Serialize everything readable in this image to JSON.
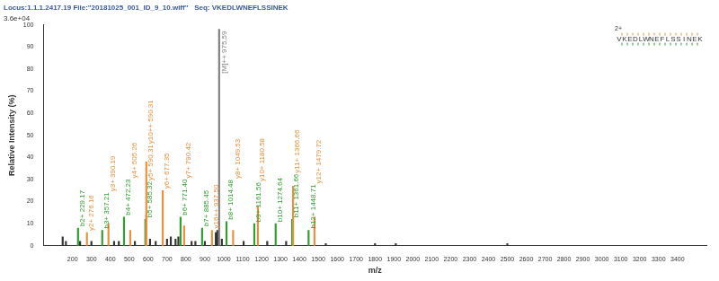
{
  "chart_data": {
    "type": "bar",
    "title": "Locus:1.1.1.2417.19 File:\"20181025_001_ID_9_10.wiff\"   Seq: VKEDLWNEFLSSINEK",
    "y_scale_label": "3.6e+04",
    "x_label": "m/z",
    "y_label": "Relative Intensity (%)",
    "sequence": "VKEDLWNEFLSSINEK",
    "charge_label": "2+",
    "x": [
      148,
      165,
      229.17,
      240,
      276.16,
      300,
      357.21,
      390.19,
      420,
      445,
      472.23,
      505.26,
      530,
      585.32,
      590.31,
      590.31,
      610,
      640,
      677.35,
      700,
      720,
      745,
      760,
      771.4,
      790.42,
      830,
      850,
      885.45,
      900,
      937.5,
      958,
      966,
      975.59,
      990,
      1014.48,
      1049.53,
      1105,
      1161.56,
      1180.58,
      1230,
      1274.64,
      1330,
      1361.66,
      1366.66,
      1448.71,
      1479.72,
      1540,
      1800,
      1910,
      2500
    ],
    "values": [
      4,
      2,
      8,
      2,
      6,
      2,
      7,
      10,
      2,
      2,
      13,
      7,
      2,
      12,
      14,
      38,
      3,
      2,
      25,
      3,
      4,
      3,
      4,
      13,
      9,
      2,
      2,
      8,
      2,
      7,
      6,
      7,
      98,
      3,
      11,
      7,
      2,
      10,
      18,
      2,
      10,
      2,
      12,
      27,
      7,
      13,
      1,
      1,
      1,
      1
    ],
    "colors": [
      "#333333",
      "#333333",
      "#2e9e2e",
      "#333333",
      "#e8903c",
      "#333333",
      "#2e9e2e",
      "#e8903c",
      "#333333",
      "#333333",
      "#2e9e2e",
      "#e8903c",
      "#333333",
      "#2e9e2e",
      "#e8903c",
      "#e8903c",
      "#333333",
      "#333333",
      "#e8903c",
      "#333333",
      "#333333",
      "#333333",
      "#333333",
      "#2e9e2e",
      "#e8903c",
      "#333333",
      "#333333",
      "#2e9e2e",
      "#333333",
      "#e8903c",
      "#333333",
      "#333333",
      "#7f7f7f",
      "#333333",
      "#2e9e2e",
      "#e8903c",
      "#333333",
      "#2e9e2e",
      "#e8903c",
      "#333333",
      "#2e9e2e",
      "#333333",
      "#2e9e2e",
      "#e8903c",
      "#2e9e2e",
      "#e8903c",
      "#333333",
      "#333333",
      "#333333",
      "#333333"
    ],
    "peak_labels": [
      null,
      null,
      "b2+ 229.17",
      null,
      "y2+ 276.16",
      null,
      "b3+ 357.21",
      "y3+ 390.19",
      null,
      null,
      "b4+ 472.23",
      "y4+ 505.26",
      null,
      "b5+ 585.32",
      "y5+ 590.31",
      "y10++ 590.31",
      null,
      null,
      "y6+ 677.35",
      null,
      null,
      null,
      null,
      "b6+ 771.40",
      "y7+ 790.42",
      null,
      null,
      "b7+ 885.45",
      null,
      "y16++ 937.50",
      null,
      null,
      "[M]++ 975.59",
      null,
      "b8+ 1014.48",
      "y8+ 1049.53",
      null,
      "b9+ 1161.56",
      "y10+ 1180.58",
      null,
      "b10+ 1274.64",
      null,
      "b11+ 1361.66",
      "y11+ 1366.66",
      "b12+ 1448.71",
      "y12+ 1479.72",
      null,
      null,
      null,
      null
    ],
    "xlim": [
      100,
      3500
    ],
    "xticks": [
      200,
      300,
      400,
      500,
      600,
      700,
      800,
      900,
      1000,
      1100,
      1200,
      1300,
      1400,
      1500,
      1600,
      1700,
      1800,
      1900,
      2000,
      2100,
      2200,
      2300,
      2400,
      2500,
      2600,
      2700,
      2800,
      2900,
      3000,
      3100,
      3200,
      3300,
      3400
    ],
    "ylim": [
      0,
      100
    ],
    "yticks": [
      0,
      10,
      20,
      30,
      40,
      50,
      60,
      70,
      80,
      90,
      100
    ],
    "grid": false
  }
}
